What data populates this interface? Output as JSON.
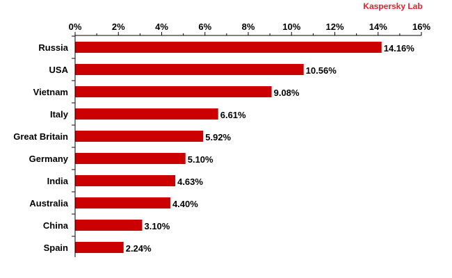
{
  "brand": {
    "text": "Kaspersky Lab",
    "color": "#e8212e"
  },
  "chart_data": {
    "type": "bar",
    "orientation": "horizontal",
    "title": "",
    "xlabel": "",
    "ylabel": "",
    "xlim": [
      0,
      16
    ],
    "x_ticks": [
      0,
      2,
      4,
      6,
      8,
      10,
      12,
      14,
      16
    ],
    "x_tick_labels": [
      "0%",
      "2%",
      "4%",
      "6%",
      "8%",
      "10%",
      "12%",
      "14%",
      "16%"
    ],
    "axis_position": "top",
    "grid": false,
    "legend": "none",
    "bar_color": "#cc0000",
    "categories": [
      "Russia",
      "USA",
      "Vietnam",
      "Italy",
      "Great Britain",
      "Germany",
      "India",
      "Australia",
      "China",
      "Spain"
    ],
    "values": [
      14.16,
      10.56,
      9.08,
      6.61,
      5.92,
      5.1,
      4.63,
      4.4,
      3.1,
      2.24
    ],
    "value_labels": [
      "14.16%",
      "10.56%",
      "9.08%",
      "6.61%",
      "5.92%",
      "5.10%",
      "4.63%",
      "4.40%",
      "3.10%",
      "2.24%"
    ]
  }
}
